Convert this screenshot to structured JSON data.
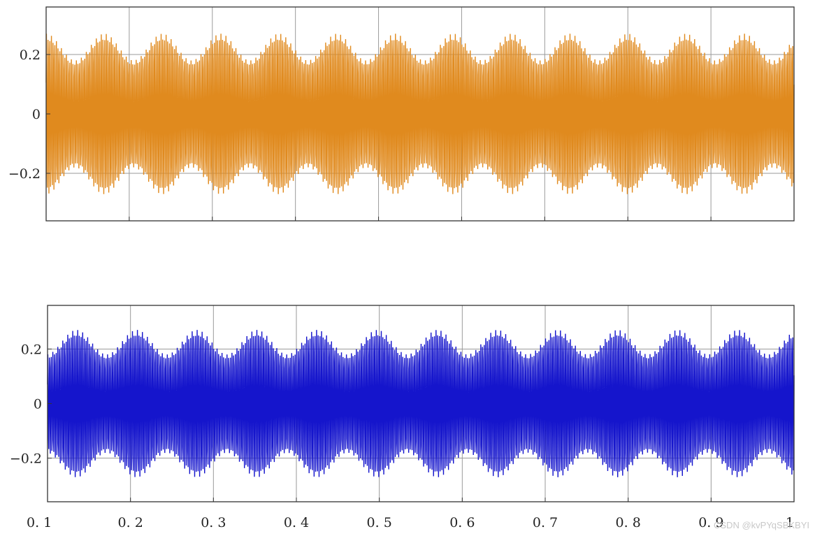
{
  "chart_data": [
    {
      "type": "line",
      "title": "",
      "xlabel": "",
      "ylabel": "",
      "xlim": [
        0.1,
        1.0
      ],
      "ylim": [
        -0.36,
        0.36
      ],
      "xticks": [
        0.2,
        0.3,
        0.4,
        0.5,
        0.6,
        0.7,
        0.8,
        0.9
      ],
      "xtick_labels_shown": false,
      "yticks": [
        -0.2,
        0,
        0.2
      ],
      "ytick_labels": [
        "−0.2",
        "0",
        "0.2"
      ],
      "grid": true,
      "color": "#e08a1e",
      "series": [
        {
          "amplitude_max": 0.27,
          "amplitude_min": 0.18,
          "envelope_period": 0.07,
          "envelope_peak_at": 0.1,
          "carrier_period": 0.002
        }
      ]
    },
    {
      "type": "line",
      "title": "",
      "xlabel": "",
      "ylabel": "",
      "xlim": [
        0.1,
        1.0
      ],
      "ylim": [
        -0.36,
        0.36
      ],
      "xticks": [
        0.1,
        0.2,
        0.3,
        0.4,
        0.5,
        0.6,
        0.7,
        0.8,
        0.9,
        1.0
      ],
      "xtick_labels": [
        "0. 1",
        "0. 2",
        "0. 3",
        "0. 4",
        "0. 5",
        "0. 6",
        "0. 7",
        "0. 8",
        "0. 9",
        "1"
      ],
      "yticks": [
        -0.2,
        0,
        0.2
      ],
      "ytick_labels": [
        "−0.2",
        "0",
        "0.2"
      ],
      "grid": true,
      "color": "#1515cc",
      "series": [
        {
          "amplitude_max": 0.27,
          "amplitude_min": 0.18,
          "envelope_period": 0.0725,
          "envelope_peak_at": 0.135,
          "carrier_period": 0.002
        }
      ]
    }
  ],
  "watermark": "CSDN @kvPYqSBKBYI"
}
